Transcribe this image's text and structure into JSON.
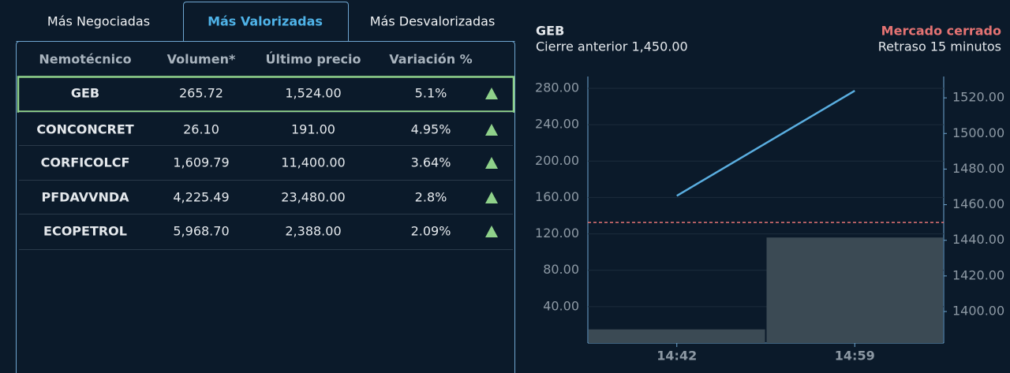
{
  "tabs": [
    "Más Negociadas",
    "Más Valorizadas",
    "Más Desvalorizadas"
  ],
  "active_tab": 1,
  "table": {
    "columns": [
      "Nemotécnico",
      "Volumen*",
      "Último precio",
      "Variación %"
    ],
    "rows": [
      [
        "GEB",
        "265.72",
        "1,524.00",
        "5.1%"
      ],
      [
        "CONCONCRET",
        "26.10",
        "191.00",
        "4.95%"
      ],
      [
        "CORFICOLCF",
        "1,609.79",
        "11,400.00",
        "3.64%"
      ],
      [
        "PFDAVVNDA",
        "4,225.49",
        "23,480.00",
        "2.8%"
      ],
      [
        "ECOPETROL",
        "5,968.70",
        "2,388.00",
        "2.09%"
      ]
    ],
    "highlighted_row": 0
  },
  "chart_data": {
    "type": "bar",
    "title": "GEB",
    "subtitle": "Cierre anterior 1,450.00",
    "status": "Mercado cerrado",
    "delay_note": "Retraso 15 minutos",
    "categories": [
      "14:42",
      "14:59"
    ],
    "series": [
      {
        "type": "bar",
        "color": "#3b4a54",
        "values": [
          15,
          116
        ]
      },
      {
        "type": "line",
        "axis": "y2",
        "color": "#5aaee0",
        "values": [
          1465,
          1524
        ]
      }
    ],
    "reference_line": {
      "value": 1450,
      "axis": "y2",
      "color": "#e57373"
    },
    "ylim": [
      0,
      293
    ],
    "yticks": [
      {
        "value": 40,
        "label": "40.00"
      },
      {
        "value": 80,
        "label": "80.00"
      },
      {
        "value": 120,
        "label": "120.00"
      },
      {
        "value": 160,
        "label": "160.00"
      },
      {
        "value": 200,
        "label": "200.00"
      },
      {
        "value": 240,
        "label": "240.00"
      },
      {
        "value": 280,
        "label": "280.00"
      }
    ],
    "y2lim": [
      1382.3,
      1532
    ],
    "y2ticks": [
      {
        "value": 1400,
        "label": "1400.00"
      },
      {
        "value": 1420,
        "label": "1420.00"
      },
      {
        "value": 1440,
        "label": "1440.00"
      },
      {
        "value": 1460,
        "label": "1460.00"
      },
      {
        "value": 1480,
        "label": "1480.00"
      },
      {
        "value": 1500,
        "label": "1500.00"
      },
      {
        "value": 1520,
        "label": "1520.00"
      }
    ],
    "grid": true
  }
}
